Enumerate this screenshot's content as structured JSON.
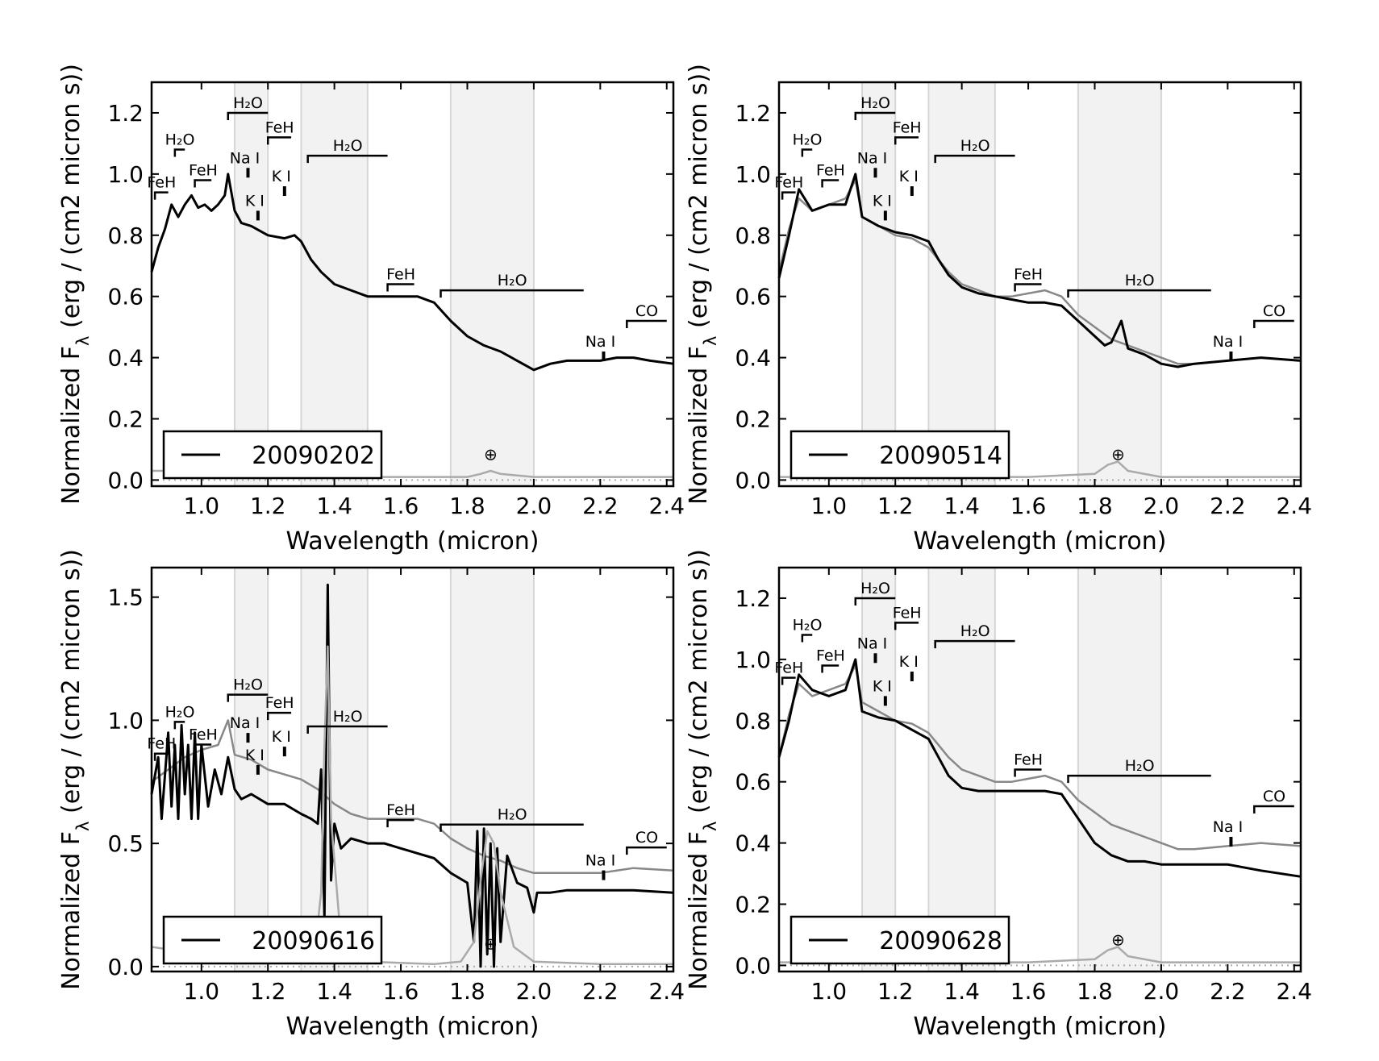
{
  "chart_data": [
    {
      "type": "line",
      "xlabel": "Wavelength (micron)",
      "ylabel": "Normalized F",
      "ylabel_sub": "λ",
      "ylabel_units": " (erg / (cm2 micron s))",
      "xlim": [
        0.85,
        2.42
      ],
      "ylim": [
        -0.02,
        1.3
      ],
      "xticks": [
        "1.0",
        "1.2",
        "1.4",
        "1.6",
        "1.8",
        "2.0",
        "2.2",
        "2.4"
      ],
      "yticks": [
        "0.0",
        "0.2",
        "0.4",
        "0.6",
        "0.8",
        "1.0",
        "1.2"
      ],
      "legend": {
        "label": "20090202",
        "placement": "lower-left"
      },
      "telluric_symbol": "⊕",
      "series": [
        {
          "role": "observed",
          "color": "#000000",
          "x": [
            0.85,
            0.87,
            0.89,
            0.91,
            0.93,
            0.95,
            0.97,
            0.99,
            1.01,
            1.03,
            1.05,
            1.07,
            1.08,
            1.1,
            1.12,
            1.15,
            1.2,
            1.25,
            1.28,
            1.3,
            1.33,
            1.36,
            1.4,
            1.45,
            1.5,
            1.55,
            1.6,
            1.65,
            1.7,
            1.75,
            1.8,
            1.85,
            1.9,
            1.95,
            2.0,
            2.05,
            2.1,
            2.15,
            2.2,
            2.25,
            2.3,
            2.35,
            2.42
          ],
          "y": [
            0.68,
            0.76,
            0.82,
            0.9,
            0.86,
            0.9,
            0.93,
            0.89,
            0.9,
            0.88,
            0.9,
            0.93,
            1.0,
            0.88,
            0.84,
            0.83,
            0.8,
            0.79,
            0.8,
            0.78,
            0.72,
            0.68,
            0.64,
            0.62,
            0.6,
            0.6,
            0.6,
            0.6,
            0.58,
            0.52,
            0.47,
            0.44,
            0.42,
            0.39,
            0.36,
            0.38,
            0.39,
            0.39,
            0.39,
            0.4,
            0.4,
            0.39,
            0.38
          ]
        },
        {
          "role": "noise",
          "color": "#aaaaaa",
          "x": [
            0.85,
            0.9,
            0.95,
            1.0,
            1.2,
            1.4,
            1.6,
            1.8,
            1.84,
            1.87,
            1.9,
            2.0,
            2.2,
            2.42
          ],
          "y": [
            0.03,
            0.03,
            0.02,
            0.01,
            0.01,
            0.01,
            0.01,
            0.01,
            0.02,
            0.03,
            0.02,
            0.01,
            0.01,
            0.01
          ]
        }
      ]
    },
    {
      "type": "line",
      "xlabel": "Wavelength (micron)",
      "ylabel": "Normalized F",
      "ylabel_sub": "λ",
      "ylabel_units": " (erg / (cm2 micron s))",
      "xlim": [
        0.85,
        2.42
      ],
      "ylim": [
        -0.02,
        1.3
      ],
      "xticks": [
        "1.0",
        "1.2",
        "1.4",
        "1.6",
        "1.8",
        "2.0",
        "2.2",
        "2.4"
      ],
      "yticks": [
        "0.0",
        "0.2",
        "0.4",
        "0.6",
        "0.8",
        "1.0",
        "1.2"
      ],
      "legend": {
        "label": "20090514",
        "placement": "lower-left"
      },
      "telluric_symbol": "⊕",
      "series": [
        {
          "role": "reference",
          "color": "#888888",
          "x": [
            0.85,
            0.88,
            0.91,
            0.95,
            1.0,
            1.05,
            1.08,
            1.1,
            1.15,
            1.2,
            1.25,
            1.3,
            1.33,
            1.36,
            1.4,
            1.45,
            1.5,
            1.55,
            1.6,
            1.65,
            1.7,
            1.75,
            1.8,
            1.85,
            1.9,
            1.95,
            2.0,
            2.05,
            2.1,
            2.2,
            2.3,
            2.42
          ],
          "y": [
            0.68,
            0.82,
            0.92,
            0.88,
            0.9,
            0.92,
            0.98,
            0.86,
            0.83,
            0.8,
            0.79,
            0.76,
            0.72,
            0.68,
            0.64,
            0.62,
            0.6,
            0.6,
            0.61,
            0.62,
            0.6,
            0.54,
            0.5,
            0.46,
            0.44,
            0.42,
            0.4,
            0.38,
            0.38,
            0.39,
            0.4,
            0.39
          ]
        },
        {
          "role": "observed",
          "color": "#000000",
          "x": [
            0.85,
            0.88,
            0.91,
            0.95,
            1.0,
            1.05,
            1.08,
            1.1,
            1.15,
            1.2,
            1.25,
            1.3,
            1.33,
            1.36,
            1.4,
            1.45,
            1.5,
            1.55,
            1.6,
            1.65,
            1.7,
            1.75,
            1.8,
            1.83,
            1.85,
            1.88,
            1.9,
            1.95,
            2.0,
            2.05,
            2.1,
            2.2,
            2.3,
            2.42
          ],
          "y": [
            0.66,
            0.8,
            0.95,
            0.88,
            0.9,
            0.9,
            1.0,
            0.86,
            0.83,
            0.81,
            0.8,
            0.78,
            0.72,
            0.67,
            0.63,
            0.61,
            0.6,
            0.59,
            0.58,
            0.58,
            0.57,
            0.52,
            0.47,
            0.44,
            0.45,
            0.52,
            0.43,
            0.41,
            0.38,
            0.37,
            0.38,
            0.39,
            0.4,
            0.39
          ]
        },
        {
          "role": "noise",
          "color": "#aaaaaa",
          "x": [
            0.85,
            1.0,
            1.3,
            1.35,
            1.38,
            1.42,
            1.6,
            1.8,
            1.84,
            1.87,
            1.9,
            2.0,
            2.2,
            2.42
          ],
          "y": [
            0.01,
            0.01,
            0.01,
            0.01,
            0.04,
            0.01,
            0.01,
            0.02,
            0.05,
            0.06,
            0.03,
            0.01,
            0.01,
            0.01
          ]
        }
      ]
    },
    {
      "type": "line",
      "xlabel": "Wavelength (micron)",
      "ylabel": "Normalized F",
      "ylabel_sub": "λ",
      "ylabel_units": " (erg / (cm2 micron s))",
      "xlim": [
        0.85,
        2.42
      ],
      "ylim": [
        -0.02,
        1.62
      ],
      "xticks": [
        "1.0",
        "1.2",
        "1.4",
        "1.6",
        "1.8",
        "2.0",
        "2.2",
        "2.4"
      ],
      "yticks": [
        "0.0",
        "0.5",
        "1.0",
        "1.5"
      ],
      "legend": {
        "label": "20090616",
        "placement": "lower-left"
      },
      "telluric_symbol": "⊕",
      "series": [
        {
          "role": "reference",
          "color": "#888888",
          "x": [
            0.85,
            0.9,
            0.95,
            1.0,
            1.05,
            1.08,
            1.1,
            1.15,
            1.2,
            1.25,
            1.3,
            1.35,
            1.4,
            1.45,
            1.5,
            1.55,
            1.6,
            1.65,
            1.7,
            1.75,
            1.8,
            1.85,
            1.9,
            1.95,
            2.0,
            2.1,
            2.2,
            2.3,
            2.42
          ],
          "y": [
            0.75,
            0.8,
            0.85,
            0.88,
            0.9,
            1.0,
            0.86,
            0.84,
            0.8,
            0.78,
            0.76,
            0.72,
            0.66,
            0.62,
            0.6,
            0.6,
            0.6,
            0.6,
            0.58,
            0.52,
            0.48,
            0.45,
            0.43,
            0.4,
            0.38,
            0.38,
            0.38,
            0.4,
            0.39
          ]
        },
        {
          "role": "observed",
          "color": "#000000",
          "x": [
            0.85,
            0.87,
            0.88,
            0.9,
            0.91,
            0.92,
            0.93,
            0.94,
            0.95,
            0.96,
            0.97,
            0.98,
            0.99,
            1.0,
            1.02,
            1.04,
            1.06,
            1.08,
            1.1,
            1.12,
            1.15,
            1.2,
            1.25,
            1.3,
            1.33,
            1.35,
            1.36,
            1.37,
            1.38,
            1.39,
            1.4,
            1.42,
            1.45,
            1.5,
            1.55,
            1.6,
            1.65,
            1.7,
            1.75,
            1.8,
            1.82,
            1.83,
            1.84,
            1.85,
            1.86,
            1.87,
            1.88,
            1.89,
            1.9,
            1.92,
            1.95,
            1.98,
            2.0,
            2.01,
            2.05,
            2.1,
            2.2,
            2.3,
            2.42
          ],
          "y": [
            0.7,
            0.85,
            0.6,
            0.95,
            0.65,
            0.9,
            0.6,
            0.98,
            0.7,
            0.9,
            0.6,
            0.95,
            0.6,
            0.9,
            0.65,
            0.8,
            0.7,
            0.85,
            0.72,
            0.68,
            0.7,
            0.66,
            0.66,
            0.62,
            0.6,
            0.58,
            0.8,
            0.2,
            1.55,
            0.35,
            0.58,
            0.48,
            0.52,
            0.5,
            0.5,
            0.48,
            0.46,
            0.44,
            0.38,
            0.34,
            0.1,
            0.55,
            0.0,
            0.56,
            0.05,
            0.5,
            0.0,
            0.48,
            0.1,
            0.45,
            0.34,
            0.32,
            0.22,
            0.3,
            0.3,
            0.31,
            0.31,
            0.31,
            0.3
          ]
        },
        {
          "role": "noise",
          "color": "#aaaaaa",
          "x": [
            0.85,
            0.9,
            0.93,
            0.96,
            1.0,
            1.2,
            1.3,
            1.34,
            1.36,
            1.37,
            1.38,
            1.39,
            1.42,
            1.5,
            1.7,
            1.78,
            1.82,
            1.84,
            1.86,
            1.88,
            1.9,
            1.94,
            2.0,
            2.2,
            2.42
          ],
          "y": [
            0.08,
            0.07,
            0.12,
            0.06,
            0.03,
            0.02,
            0.02,
            0.05,
            0.3,
            0.9,
            1.3,
            0.6,
            0.1,
            0.02,
            0.01,
            0.02,
            0.1,
            0.35,
            0.55,
            0.5,
            0.3,
            0.08,
            0.02,
            0.01,
            0.01
          ]
        }
      ]
    },
    {
      "type": "line",
      "xlabel": "Wavelength (micron)",
      "ylabel": "Normalized F",
      "ylabel_sub": "λ",
      "ylabel_units": " (erg / (cm2 micron s))",
      "xlim": [
        0.85,
        2.42
      ],
      "ylim": [
        -0.02,
        1.3
      ],
      "xticks": [
        "1.0",
        "1.2",
        "1.4",
        "1.6",
        "1.8",
        "2.0",
        "2.2",
        "2.4"
      ],
      "yticks": [
        "0.0",
        "0.2",
        "0.4",
        "0.6",
        "0.8",
        "1.0",
        "1.2"
      ],
      "legend": {
        "label": "20090628",
        "placement": "lower-left"
      },
      "telluric_symbol": "⊕",
      "series": [
        {
          "role": "reference",
          "color": "#888888",
          "x": [
            0.85,
            0.88,
            0.91,
            0.95,
            1.0,
            1.05,
            1.08,
            1.1,
            1.15,
            1.2,
            1.25,
            1.3,
            1.33,
            1.36,
            1.4,
            1.45,
            1.5,
            1.55,
            1.6,
            1.65,
            1.7,
            1.75,
            1.8,
            1.85,
            1.9,
            1.95,
            2.0,
            2.05,
            2.1,
            2.2,
            2.3,
            2.42
          ],
          "y": [
            0.68,
            0.82,
            0.92,
            0.88,
            0.9,
            0.92,
            0.98,
            0.86,
            0.83,
            0.8,
            0.79,
            0.76,
            0.72,
            0.68,
            0.64,
            0.62,
            0.6,
            0.6,
            0.61,
            0.62,
            0.6,
            0.54,
            0.5,
            0.46,
            0.44,
            0.42,
            0.4,
            0.38,
            0.38,
            0.39,
            0.4,
            0.39
          ]
        },
        {
          "role": "observed",
          "color": "#000000",
          "x": [
            0.85,
            0.88,
            0.91,
            0.95,
            1.0,
            1.05,
            1.08,
            1.1,
            1.15,
            1.2,
            1.25,
            1.3,
            1.33,
            1.36,
            1.4,
            1.45,
            1.5,
            1.55,
            1.6,
            1.65,
            1.7,
            1.75,
            1.8,
            1.85,
            1.9,
            1.95,
            2.0,
            2.1,
            2.2,
            2.3,
            2.42
          ],
          "y": [
            0.68,
            0.8,
            0.95,
            0.9,
            0.88,
            0.9,
            1.0,
            0.83,
            0.81,
            0.8,
            0.77,
            0.74,
            0.68,
            0.62,
            0.58,
            0.57,
            0.57,
            0.57,
            0.57,
            0.57,
            0.56,
            0.48,
            0.4,
            0.36,
            0.34,
            0.34,
            0.33,
            0.33,
            0.33,
            0.31,
            0.29
          ]
        },
        {
          "role": "noise",
          "color": "#aaaaaa",
          "x": [
            0.85,
            1.0,
            1.3,
            1.35,
            1.38,
            1.42,
            1.6,
            1.8,
            1.84,
            1.87,
            1.9,
            2.0,
            2.2,
            2.42
          ],
          "y": [
            0.01,
            0.01,
            0.01,
            0.01,
            0.04,
            0.01,
            0.01,
            0.02,
            0.05,
            0.06,
            0.03,
            0.01,
            0.01,
            0.01
          ]
        }
      ]
    }
  ],
  "annotation_labels": [
    "FeH",
    "H₂O",
    "FeH",
    "Na I",
    "K I",
    "H₂O",
    "FeH",
    "K I",
    "H₂O",
    "FeH",
    "H₂O",
    "Na I",
    "CO"
  ]
}
